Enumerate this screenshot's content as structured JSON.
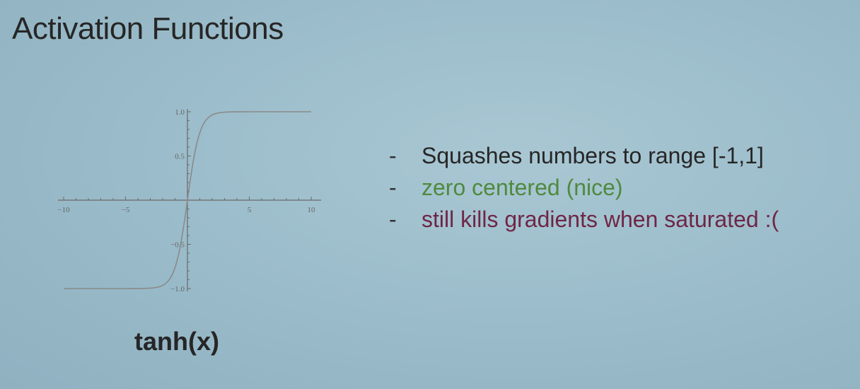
{
  "slide": {
    "title": "Activation Functions",
    "function_label": "tanh(x)"
  },
  "bullets": [
    {
      "dash": "-",
      "text": "Squashes numbers to range [-1,1]",
      "color": "#262626"
    },
    {
      "dash": "-",
      "text": "zero centered (nice)",
      "color": "#4f8a3e"
    },
    {
      "dash": "-",
      "text": "still kills gradients when saturated :(",
      "color": "#6e2646"
    }
  ],
  "chart_data": {
    "type": "line",
    "function": "tanh(x)",
    "xlim": [
      -10,
      10
    ],
    "ylim": [
      -1,
      1
    ],
    "x_ticks": [
      {
        "value": -10,
        "label": "−10"
      },
      {
        "value": -5,
        "label": "−5"
      },
      {
        "value": 5,
        "label": "5"
      },
      {
        "value": 10,
        "label": "10"
      }
    ],
    "y_ticks": [
      {
        "value": 1.0,
        "label": "1.0"
      },
      {
        "value": 0.5,
        "label": "0.5"
      },
      {
        "value": -0.5,
        "label": "−0.5"
      },
      {
        "value": -1.0,
        "label": "−1.0"
      }
    ],
    "x": [
      -10,
      -8,
      -6,
      -4,
      -3,
      -2,
      -1.5,
      -1,
      -0.5,
      0,
      0.5,
      1,
      1.5,
      2,
      3,
      4,
      6,
      8,
      10
    ],
    "y": [
      -1.0,
      -1.0,
      -1.0,
      -0.999,
      -0.995,
      -0.964,
      -0.905,
      -0.762,
      -0.462,
      0,
      0.462,
      0.762,
      0.905,
      0.964,
      0.995,
      0.999,
      1.0,
      1.0,
      1.0
    ],
    "grid": false,
    "line_color": "#8a8a8a",
    "axis_color": "#6a6a6a"
  }
}
